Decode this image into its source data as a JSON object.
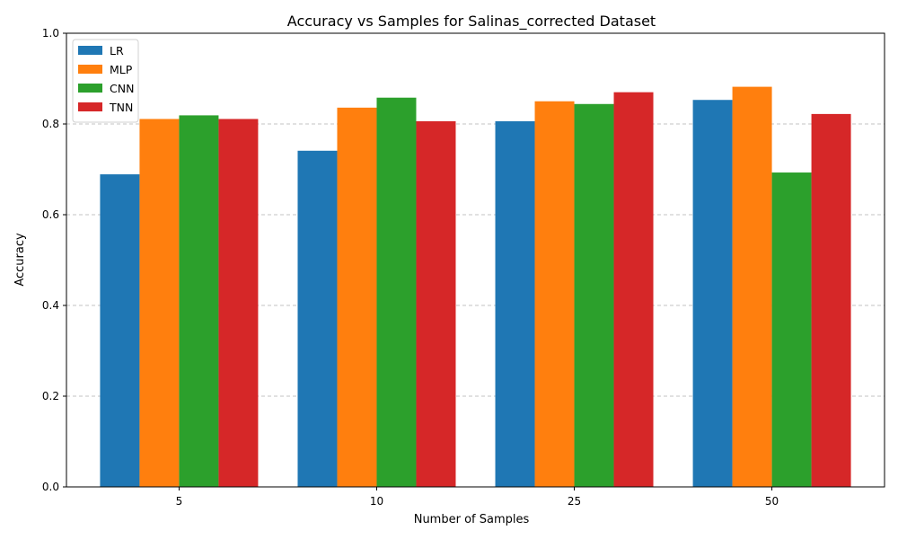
{
  "chart_data": {
    "type": "bar",
    "title": "Accuracy vs Samples for Salinas_corrected Dataset",
    "xlabel": "Number of Samples",
    "ylabel": "Accuracy",
    "categories": [
      "5",
      "10",
      "25",
      "50"
    ],
    "ylim": [
      0,
      1
    ],
    "yticks": [
      "0.0",
      "0.2",
      "0.4",
      "0.6",
      "0.8",
      "1.0"
    ],
    "grid": "y-dashed",
    "legend_position": "top-left",
    "series": [
      {
        "name": "LR",
        "color": "#1f77b4",
        "values": [
          0.689,
          0.741,
          0.806,
          0.853
        ]
      },
      {
        "name": "MLP",
        "color": "#ff7f0e",
        "values": [
          0.811,
          0.836,
          0.85,
          0.882
        ]
      },
      {
        "name": "CNN",
        "color": "#2ca02c",
        "values": [
          0.819,
          0.858,
          0.844,
          0.693
        ]
      },
      {
        "name": "TNN",
        "color": "#d62728",
        "values": [
          0.811,
          0.806,
          0.87,
          0.822
        ]
      }
    ]
  }
}
